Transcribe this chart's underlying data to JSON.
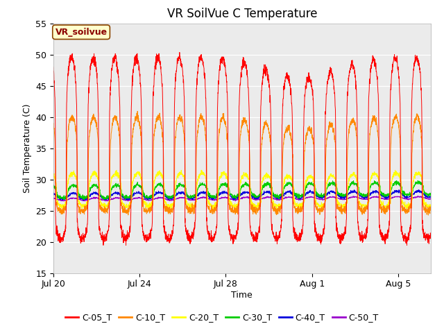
{
  "title": "VR SoilVue C Temperature",
  "xlabel": "Time",
  "ylabel": "Soil Temperature (C)",
  "ylim": [
    15,
    55
  ],
  "yticks": [
    15,
    20,
    25,
    30,
    35,
    40,
    45,
    50,
    55
  ],
  "num_days": 17.5,
  "xtick_labels": [
    "Jul 20",
    "Jul 24",
    "Jul 28",
    "Aug 1",
    "Aug 5"
  ],
  "xtick_positions": [
    0,
    4,
    8,
    12,
    16
  ],
  "series_colors": {
    "C-05_T": "#ff0000",
    "C-10_T": "#ff8800",
    "C-20_T": "#ffff00",
    "C-30_T": "#00cc00",
    "C-40_T": "#0000dd",
    "C-50_T": "#9900cc"
  },
  "series_order": [
    "C-50_T",
    "C-40_T",
    "C-30_T",
    "C-20_T",
    "C-10_T",
    "C-05_T"
  ],
  "legend_order": [
    "C-05_T",
    "C-10_T",
    "C-20_T",
    "C-30_T",
    "C-40_T",
    "C-50_T"
  ],
  "annotation_text": "VR_soilvue",
  "bg_color": "#ebebeb",
  "fig_bg": "#ffffff",
  "title_fontsize": 12,
  "axis_label_fontsize": 9,
  "tick_fontsize": 9,
  "legend_fontsize": 9,
  "points_per_day": 144
}
